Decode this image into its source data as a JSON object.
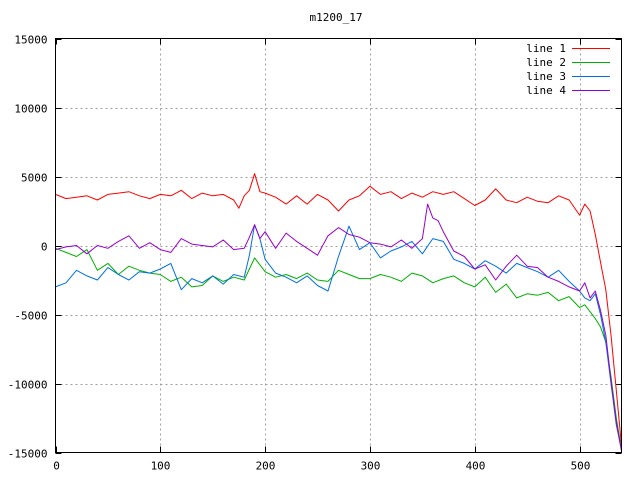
{
  "chart_data": {
    "type": "line",
    "title": "m1200_17",
    "xlabel": "",
    "ylabel": "",
    "xlim": [
      0,
      540
    ],
    "ylim": [
      -15000,
      15000
    ],
    "xticks": [
      "0",
      "100",
      "200",
      "300",
      "400",
      "500"
    ],
    "yticks": [
      "15000",
      "10000",
      "5000",
      "0",
      "-5000",
      "-10000",
      "-15000"
    ],
    "grid": true,
    "legend_position": "top-right",
    "series": [
      {
        "name": "line 1",
        "color": "#ff0000",
        "x": [
          0,
          10,
          20,
          30,
          40,
          50,
          60,
          70,
          80,
          90,
          100,
          110,
          120,
          130,
          140,
          150,
          160,
          170,
          175,
          180,
          185,
          190,
          195,
          200,
          210,
          220,
          230,
          240,
          250,
          260,
          270,
          280,
          290,
          300,
          310,
          320,
          330,
          340,
          350,
          360,
          370,
          380,
          390,
          400,
          410,
          420,
          430,
          440,
          450,
          460,
          470,
          480,
          490,
          500,
          505,
          510,
          515,
          520,
          525,
          530,
          535,
          540
        ],
        "y": [
          3700,
          3400,
          3500,
          3600,
          3300,
          3700,
          3800,
          3900,
          3600,
          3400,
          3700,
          3600,
          4000,
          3400,
          3800,
          3600,
          3700,
          3300,
          2700,
          3600,
          4000,
          5200,
          3900,
          3800,
          3500,
          3000,
          3600,
          3000,
          3700,
          3300,
          2500,
          3300,
          3600,
          4300,
          3700,
          3900,
          3400,
          3800,
          3500,
          3900,
          3700,
          3900,
          3400,
          2900,
          3300,
          4100,
          3300,
          3100,
          3500,
          3200,
          3100,
          3600,
          3300,
          2200,
          3000,
          2500,
          800,
          -1200,
          -3200,
          -6500,
          -10500,
          -14500
        ]
      },
      {
        "name": "line 2",
        "color": "#00b000",
        "x": [
          0,
          10,
          20,
          30,
          40,
          50,
          60,
          70,
          80,
          90,
          100,
          110,
          120,
          130,
          140,
          150,
          160,
          170,
          180,
          190,
          200,
          210,
          220,
          230,
          240,
          250,
          260,
          270,
          280,
          290,
          300,
          310,
          320,
          330,
          340,
          350,
          360,
          370,
          380,
          390,
          400,
          410,
          420,
          430,
          440,
          450,
          460,
          470,
          480,
          490,
          500,
          505,
          510,
          515,
          520,
          525,
          530,
          535,
          540
        ],
        "y": [
          -200,
          -500,
          -800,
          -300,
          -1800,
          -1300,
          -2100,
          -1500,
          -1800,
          -2000,
          -2100,
          -2600,
          -2300,
          -3000,
          -2900,
          -2200,
          -2600,
          -2300,
          -2500,
          -900,
          -1900,
          -2300,
          -2100,
          -2400,
          -2000,
          -2500,
          -2600,
          -1800,
          -2100,
          -2400,
          -2400,
          -2100,
          -2300,
          -2600,
          -2000,
          -2200,
          -2700,
          -2400,
          -2200,
          -2700,
          -3000,
          -2300,
          -3400,
          -2800,
          -3800,
          -3500,
          -3600,
          -3400,
          -4000,
          -3700,
          -4500,
          -4300,
          -4800,
          -5300,
          -5900,
          -7000,
          -9500,
          -12500,
          -14800
        ]
      },
      {
        "name": "line 3",
        "color": "#0070e0",
        "x": [
          0,
          10,
          20,
          30,
          40,
          50,
          60,
          70,
          80,
          90,
          100,
          110,
          120,
          130,
          140,
          150,
          160,
          170,
          180,
          185,
          190,
          195,
          200,
          210,
          220,
          230,
          240,
          250,
          260,
          270,
          280,
          290,
          300,
          310,
          320,
          330,
          340,
          350,
          360,
          370,
          380,
          390,
          400,
          410,
          420,
          430,
          440,
          450,
          460,
          470,
          480,
          490,
          500,
          505,
          510,
          515,
          520,
          525,
          530,
          535,
          540
        ],
        "y": [
          -3000,
          -2700,
          -1800,
          -2200,
          -2500,
          -1600,
          -2100,
          -2500,
          -1900,
          -2000,
          -1700,
          -1300,
          -3200,
          -2400,
          -2700,
          -2200,
          -2800,
          -2100,
          -2300,
          -700,
          1500,
          500,
          -1000,
          -2000,
          -2300,
          -2700,
          -2200,
          -2900,
          -3300,
          -800,
          1400,
          -300,
          200,
          -900,
          -400,
          -100,
          300,
          -600,
          500,
          300,
          -1000,
          -1300,
          -1700,
          -1100,
          -1500,
          -2000,
          -1300,
          -1600,
          -1900,
          -2300,
          -1800,
          -2600,
          -3300,
          -3800,
          -4000,
          -3500,
          -5000,
          -7000,
          -10000,
          -13000,
          -14800
        ]
      },
      {
        "name": "line 4",
        "color": "#9900cc",
        "x": [
          0,
          10,
          20,
          30,
          40,
          50,
          60,
          70,
          80,
          90,
          100,
          110,
          120,
          130,
          140,
          150,
          160,
          170,
          180,
          185,
          190,
          195,
          200,
          210,
          220,
          230,
          240,
          250,
          260,
          270,
          280,
          290,
          300,
          310,
          320,
          330,
          340,
          350,
          355,
          360,
          365,
          370,
          380,
          390,
          400,
          410,
          420,
          430,
          440,
          450,
          460,
          470,
          480,
          490,
          500,
          505,
          510,
          515,
          520,
          525,
          530,
          535,
          540
        ],
        "y": [
          -300,
          -100,
          0,
          -600,
          0,
          -200,
          300,
          700,
          -200,
          200,
          -300,
          -500,
          500,
          100,
          0,
          -100,
          400,
          -300,
          -200,
          600,
          1500,
          500,
          1000,
          -200,
          900,
          300,
          -200,
          -700,
          700,
          1300,
          800,
          600,
          200,
          100,
          -100,
          400,
          -200,
          500,
          3000,
          2000,
          1800,
          1000,
          -400,
          -800,
          -1700,
          -1400,
          -2500,
          -1500,
          -700,
          -1500,
          -1600,
          -2300,
          -2600,
          -3000,
          -3300,
          -2700,
          -3800,
          -3300,
          -4700,
          -6500,
          -9800,
          -12800,
          -14900
        ]
      }
    ]
  }
}
